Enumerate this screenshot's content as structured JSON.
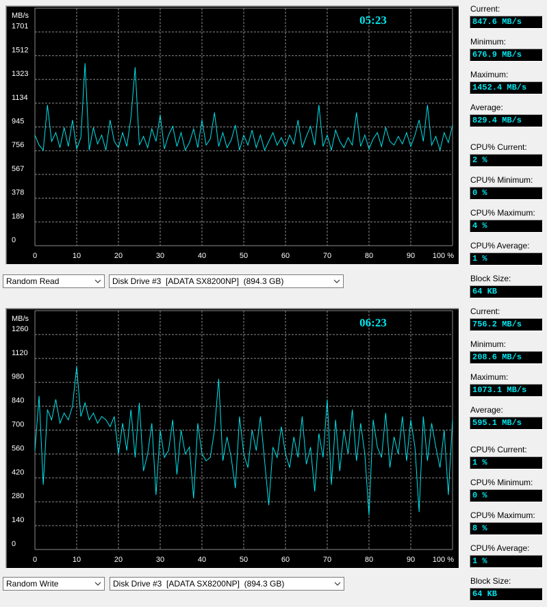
{
  "colors": {
    "trace": "#00e5ee",
    "timer": "#00e5ee",
    "grid": "#8c8c8c",
    "axis_text": "#ffffff"
  },
  "read": {
    "unit": "MB/s",
    "timer": "05:23",
    "y_ticks": [
      "1701",
      "1512",
      "1323",
      "1134",
      "945",
      "756",
      "567",
      "378",
      "189",
      "0"
    ],
    "x_ticks": [
      "0",
      "10",
      "20",
      "30",
      "40",
      "50",
      "60",
      "70",
      "80",
      "90",
      "100 %"
    ],
    "test_select": "Random Read",
    "drive_select": "Disk Drive #3  [ADATA SX8200NP]  (894.3 GB)",
    "stats": [
      {
        "label": "Current:",
        "value": "847.6 MB/s"
      },
      {
        "label": "Minimum:",
        "value": "676.9 MB/s"
      },
      {
        "label": "Maximum:",
        "value": "1452.4 MB/s"
      },
      {
        "label": "Average:",
        "value": "829.4 MB/s"
      },
      {
        "label": "CPU% Current:",
        "value": "2 %"
      },
      {
        "label": "CPU% Minimum:",
        "value": "0 %"
      },
      {
        "label": "CPU% Maximum:",
        "value": "4 %"
      },
      {
        "label": "CPU% Average:",
        "value": "1 %"
      },
      {
        "label": "Block Size:",
        "value": "64 KB"
      }
    ]
  },
  "write": {
    "unit": "MB/s",
    "timer": "06:23",
    "y_ticks": [
      "1260",
      "1120",
      "980",
      "840",
      "700",
      "560",
      "420",
      "280",
      "140",
      "0"
    ],
    "x_ticks": [
      "0",
      "10",
      "20",
      "30",
      "40",
      "50",
      "60",
      "70",
      "80",
      "90",
      "100 %"
    ],
    "test_select": "Random Write",
    "drive_select": "Disk Drive #3  [ADATA SX8200NP]  (894.3 GB)",
    "stats": [
      {
        "label": "Current:",
        "value": "756.2 MB/s"
      },
      {
        "label": "Minimum:",
        "value": "208.6 MB/s"
      },
      {
        "label": "Maximum:",
        "value": "1073.1 MB/s"
      },
      {
        "label": "Average:",
        "value": "595.1 MB/s"
      },
      {
        "label": "CPU% Current:",
        "value": "1 %"
      },
      {
        "label": "CPU% Minimum:",
        "value": "0 %"
      },
      {
        "label": "CPU% Maximum:",
        "value": "8 %"
      },
      {
        "label": "CPU% Average:",
        "value": "1 %"
      },
      {
        "label": "Block Size:",
        "value": "64 KB"
      }
    ]
  },
  "chart_data": [
    {
      "type": "line",
      "ylabel": "MB/s",
      "ylim": [
        0,
        1890
      ],
      "xlim": [
        0,
        100
      ],
      "grid": true,
      "x": [
        0,
        1,
        2,
        3,
        4,
        5,
        6,
        7,
        8,
        9,
        10,
        11,
        12,
        13,
        14,
        15,
        16,
        17,
        18,
        19,
        20,
        21,
        22,
        23,
        24,
        25,
        26,
        27,
        28,
        29,
        30,
        31,
        32,
        33,
        34,
        35,
        36,
        37,
        38,
        39,
        40,
        41,
        42,
        43,
        44,
        45,
        46,
        47,
        48,
        49,
        50,
        51,
        52,
        53,
        54,
        55,
        56,
        57,
        58,
        59,
        60,
        61,
        62,
        63,
        64,
        65,
        66,
        67,
        68,
        69,
        70,
        71,
        72,
        73,
        74,
        75,
        76,
        77,
        78,
        79,
        80,
        81,
        82,
        83,
        84,
        85,
        86,
        87,
        88,
        89,
        90,
        91,
        92,
        93,
        94,
        95,
        96,
        97,
        98,
        99,
        100
      ],
      "y": [
        880,
        800,
        760,
        1120,
        830,
        900,
        780,
        940,
        790,
        1000,
        770,
        860,
        1452,
        760,
        940,
        810,
        880,
        760,
        1000,
        830,
        780,
        900,
        790,
        1020,
        1420,
        800,
        870,
        780,
        930,
        830,
        1040,
        770,
        880,
        950,
        790,
        900,
        760,
        820,
        930,
        780,
        1000,
        800,
        850,
        1060,
        790,
        900,
        780,
        840,
        960,
        760,
        880,
        800,
        920,
        780,
        880,
        760,
        830,
        900,
        800,
        860,
        790,
        880,
        810,
        1000,
        780,
        870,
        950,
        800,
        1120,
        790,
        880,
        760,
        920,
        830,
        780,
        860,
        800,
        1060,
        790,
        880,
        770,
        850,
        900,
        790,
        940,
        830,
        800,
        870,
        810,
        900,
        790,
        880,
        1000,
        830,
        1120,
        800,
        870,
        760,
        900,
        820,
        960
      ]
    },
    {
      "type": "line",
      "ylabel": "MB/s",
      "ylim": [
        0,
        1400
      ],
      "xlim": [
        0,
        100
      ],
      "grid": true,
      "x": [
        0,
        1,
        2,
        3,
        4,
        5,
        6,
        7,
        8,
        9,
        10,
        11,
        12,
        13,
        14,
        15,
        16,
        17,
        18,
        19,
        20,
        21,
        22,
        23,
        24,
        25,
        26,
        27,
        28,
        29,
        30,
        31,
        32,
        33,
        34,
        35,
        36,
        37,
        38,
        39,
        40,
        41,
        42,
        43,
        44,
        45,
        46,
        47,
        48,
        49,
        50,
        51,
        52,
        53,
        54,
        55,
        56,
        57,
        58,
        59,
        60,
        61,
        62,
        63,
        64,
        65,
        66,
        67,
        68,
        69,
        70,
        71,
        72,
        73,
        74,
        75,
        76,
        77,
        78,
        79,
        80,
        81,
        82,
        83,
        84,
        85,
        86,
        87,
        88,
        89,
        90,
        91,
        92,
        93,
        94,
        95,
        96,
        97,
        98,
        99,
        100
      ],
      "y": [
        580,
        900,
        380,
        820,
        760,
        880,
        740,
        800,
        760,
        840,
        1073,
        780,
        860,
        760,
        800,
        740,
        780,
        760,
        720,
        780,
        560,
        740,
        580,
        820,
        540,
        860,
        460,
        560,
        740,
        320,
        700,
        540,
        580,
        760,
        440,
        700,
        560,
        600,
        300,
        740,
        560,
        520,
        540,
        700,
        1000,
        520,
        660,
        540,
        360,
        780,
        560,
        480,
        700,
        580,
        780,
        520,
        260,
        600,
        540,
        720,
        560,
        480,
        660,
        540,
        780,
        500,
        600,
        340,
        680,
        540,
        880,
        380,
        760,
        460,
        700,
        560,
        820,
        520,
        740,
        560,
        200,
        760,
        600,
        540,
        800,
        480,
        660,
        560,
        780,
        520,
        760,
        600,
        220,
        780,
        520,
        740,
        600,
        480,
        700,
        320,
        760
      ]
    }
  ]
}
